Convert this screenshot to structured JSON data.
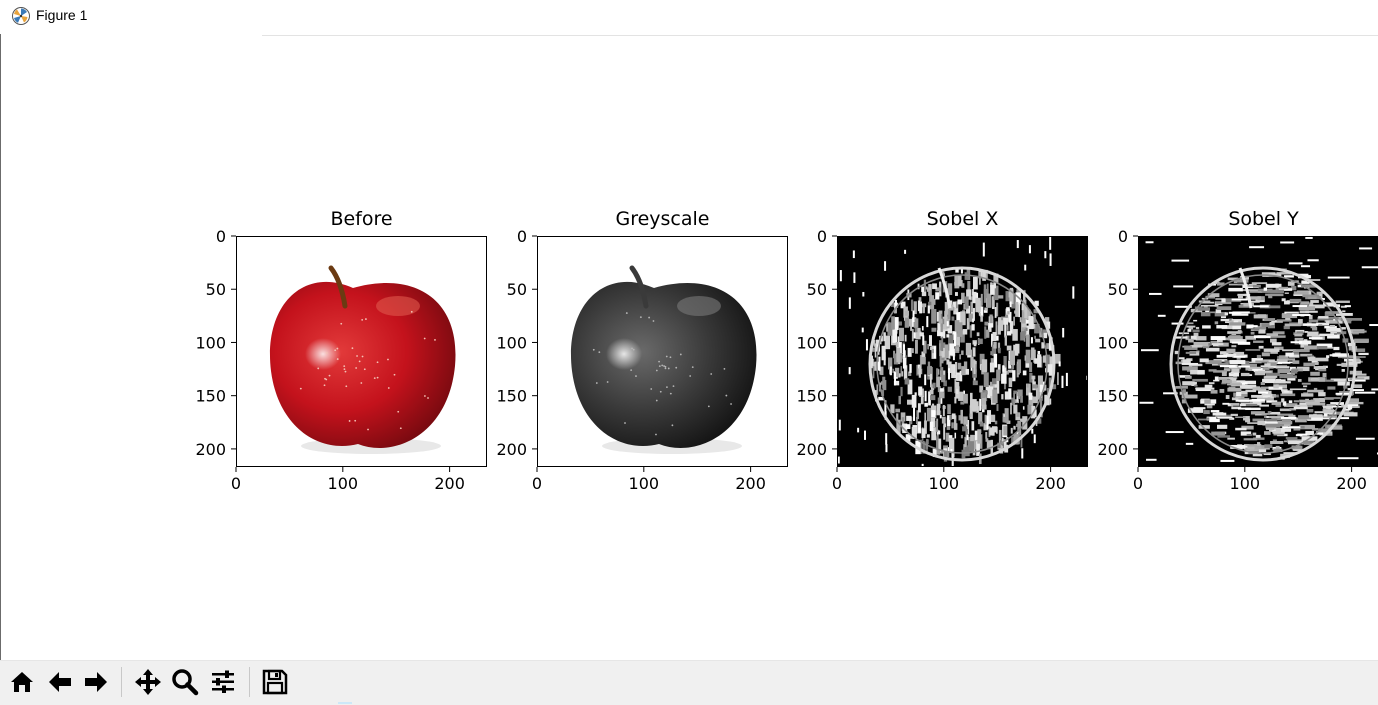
{
  "window": {
    "title": "Figure 1",
    "icon": "matplotlib-logo-icon"
  },
  "toolbar": {
    "buttons": [
      {
        "name": "home-button",
        "icon": "home-icon"
      },
      {
        "name": "back-button",
        "icon": "arrow-left-icon"
      },
      {
        "name": "forward-button",
        "icon": "arrow-right-icon"
      },
      {
        "name": "pan-button",
        "icon": "move-icon"
      },
      {
        "name": "zoom-button",
        "icon": "magnifier-icon"
      },
      {
        "name": "configure-subplots-button",
        "icon": "sliders-icon"
      },
      {
        "name": "save-button",
        "icon": "floppy-disk-icon"
      }
    ]
  },
  "chart_data": [
    {
      "type": "image",
      "title": "Before",
      "image_content": "red apple on white background",
      "xticks": [
        "0",
        "100",
        "200"
      ],
      "yticks": [
        "0",
        "50",
        "100",
        "150",
        "200"
      ],
      "xlim": [
        0,
        235
      ],
      "ylim": [
        217,
        0
      ]
    },
    {
      "type": "image",
      "title": "Greyscale",
      "image_content": "greyscale apple on white background",
      "xticks": [
        "0",
        "100",
        "200"
      ],
      "yticks": [
        "0",
        "50",
        "100",
        "150",
        "200"
      ],
      "xlim": [
        0,
        235
      ],
      "ylim": [
        217,
        0
      ]
    },
    {
      "type": "image",
      "title": "Sobel X",
      "image_content": "horizontal Sobel edge map of apple",
      "xticks": [
        "0",
        "100",
        "200"
      ],
      "yticks": [
        "0",
        "50",
        "100",
        "150",
        "200"
      ],
      "xlim": [
        0,
        235
      ],
      "ylim": [
        217,
        0
      ]
    },
    {
      "type": "image",
      "title": "Sobel Y",
      "image_content": "vertical Sobel edge map of apple",
      "xticks": [
        "0",
        "100",
        "200"
      ],
      "yticks": [
        "0",
        "50",
        "100",
        "150",
        "200"
      ],
      "xlim": [
        0,
        235
      ],
      "ylim": [
        217,
        0
      ]
    }
  ]
}
